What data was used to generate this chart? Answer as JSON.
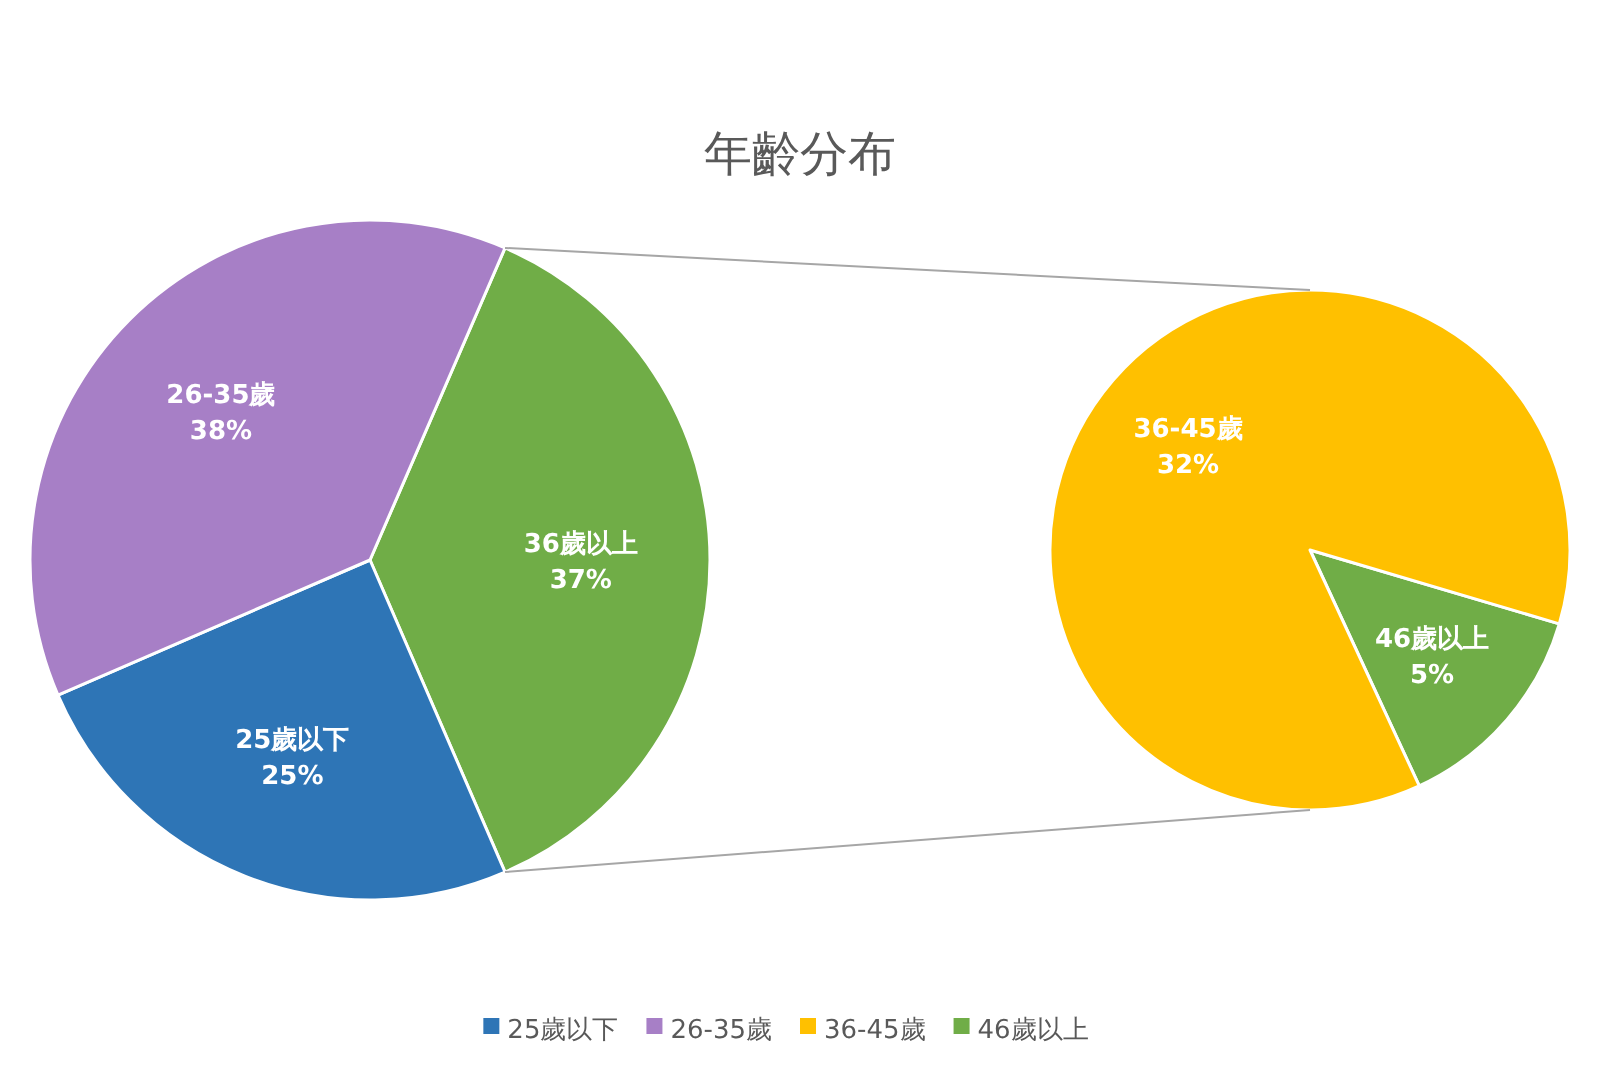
{
  "chart_data": [
    {
      "type": "pie",
      "title": "年齡分布",
      "categories": [
        "25歲以下",
        "26-35歲",
        "36歲以上"
      ],
      "values": [
        25,
        38,
        37
      ],
      "colors": [
        "#2e75b6",
        "#a77fc6",
        "#70ad47"
      ],
      "value_labels": [
        "25%",
        "38%",
        "37%"
      ],
      "legend": "bottom"
    },
    {
      "type": "pie",
      "categories": [
        "36-45歲",
        "46歲以上"
      ],
      "values": [
        32,
        5
      ],
      "colors": [
        "#ffc000",
        "#70ad47"
      ],
      "value_labels": [
        "32%",
        "5%"
      ],
      "legend": "bottom"
    }
  ]
}
